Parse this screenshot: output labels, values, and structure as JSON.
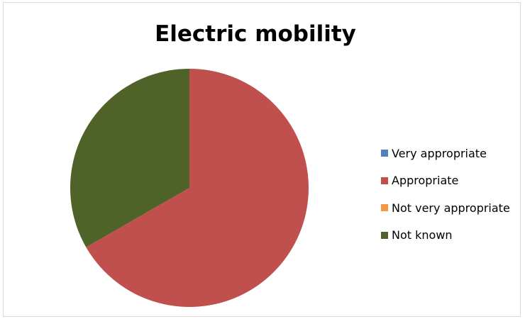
{
  "chart_data": {
    "type": "pie",
    "title": "Electric mobility",
    "categories": [
      "Very appropriate",
      "Appropriate",
      "Not very appropriate",
      "Not known"
    ],
    "values": [
      0,
      66.7,
      0,
      33.3
    ],
    "colors": [
      "#4F81BD",
      "#C0504D",
      "#F79646",
      "#4F6228"
    ],
    "legend_position": "right"
  }
}
